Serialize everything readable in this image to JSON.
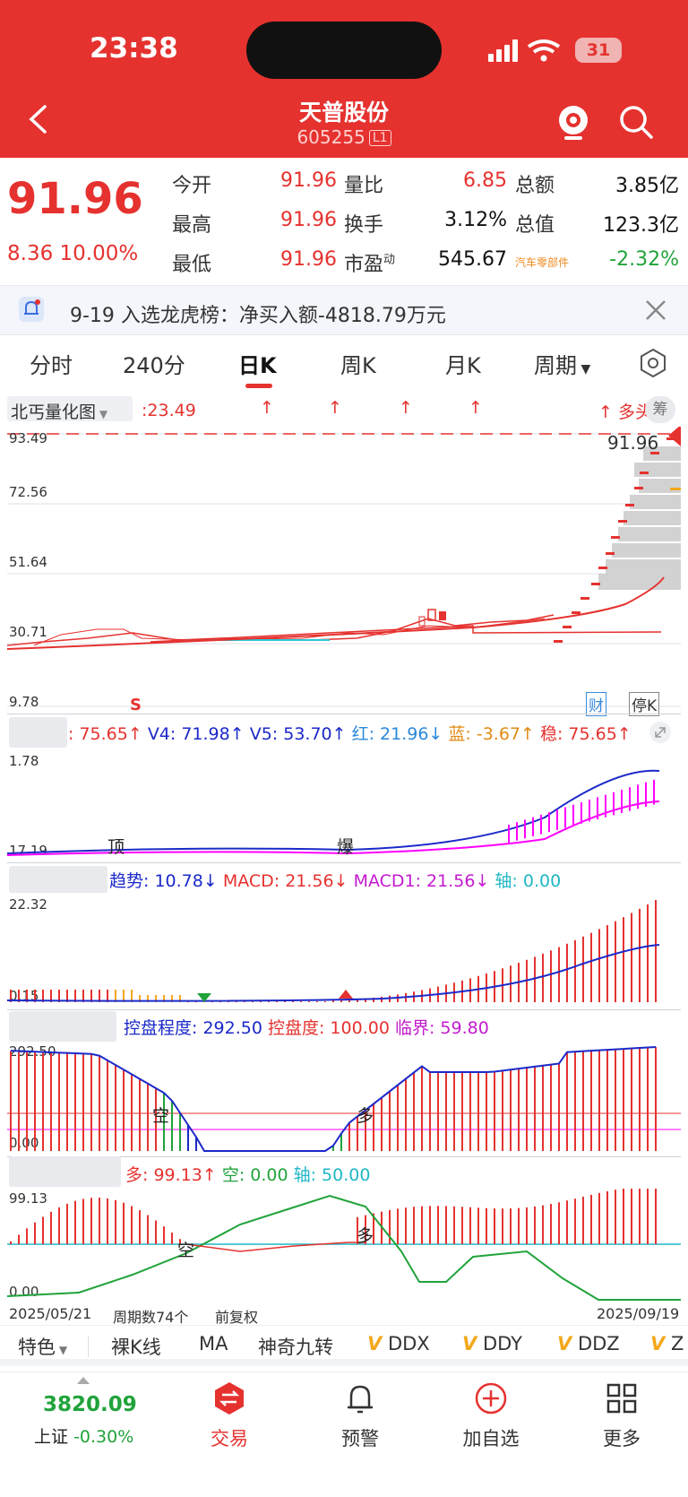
{
  "status": {
    "time": "23:38",
    "battery": "31"
  },
  "header": {
    "name": "天普股份",
    "code": "605255",
    "level": "L1"
  },
  "quote": {
    "price": "91.96",
    "change": "8.36",
    "change_pct": "10.00%",
    "rows": [
      {
        "l1": "今开",
        "v1": "91.96",
        "l2": "量比",
        "v2": "6.85",
        "l3": "总额",
        "v3": "3.85亿"
      },
      {
        "l1": "最高",
        "v1": "91.96",
        "l2": "换手",
        "v2": "3.12%",
        "l3": "总值",
        "v3": "123.3亿"
      },
      {
        "l1": "最低",
        "v1": "91.96",
        "l2": "市盈",
        "l2sup": "动",
        "v2": "545.67",
        "l3": "汽车零部件",
        "v3": "-2.32%"
      }
    ]
  },
  "notice": {
    "text": "9-19 入选龙虎榜：净买入额-4818.79万元"
  },
  "tabs": [
    "分时",
    "240分",
    "日K",
    "周K",
    "月K",
    "周期"
  ],
  "kline": {
    "indicator_name": "北丐量化图",
    "top_value": ":23.49",
    "tag_duo": "↑ 多头",
    "tag_chou": "筹",
    "last_price": "91.96",
    "axis": [
      "93.49",
      "72.56",
      "51.64",
      "30.71",
      "9.78"
    ],
    "marker_s": "S",
    "tag_cai": "财",
    "tag_ting": "停K"
  },
  "panel1": {
    "line": [
      ": 75.65↑",
      "V4: 71.98↑",
      "V5: 53.70↑",
      "红: 21.96↓",
      "蓝: -3.67↑",
      "稳: 75.65↑"
    ],
    "axis_top": "1.78",
    "axis_bottom": "17.19",
    "label_ding": "顶",
    "label_bao": "爆"
  },
  "panel2": {
    "line": [
      "趋势: 10.78↓",
      "MACD: 21.56↓",
      "MACD1: 21.56↓",
      "轴: 0.00"
    ],
    "axis_top": "22.32",
    "axis_bottom": "0.15"
  },
  "panel3": {
    "line": [
      "控盘程度: 292.50",
      "控盘度: 100.00",
      "临界: 59.80"
    ],
    "axis_top": "292.50",
    "axis_bottom": "0.00",
    "label_kong": "空",
    "label_duo": "多"
  },
  "panel4": {
    "line": [
      "多: 99.13↑",
      "空: 0.00",
      "轴: 50.00"
    ],
    "axis_top": "99.13",
    "axis_bottom": "0.00",
    "label_kong": "空",
    "label_duo": "多"
  },
  "footer_info": {
    "start": "2025/05/21",
    "period": "周期数74个",
    "adjust": "前复权",
    "end": "2025/09/19"
  },
  "features": [
    "特色",
    "裸K线",
    "MA",
    "神奇九转",
    "DDX",
    "DDY",
    "DDZ",
    "Z"
  ],
  "bottom": {
    "index_value": "3820.09",
    "index_name": "上证",
    "index_change": "-0.30%",
    "nav": [
      "交易",
      "预警",
      "加自选",
      "更多"
    ]
  },
  "colors": {
    "brand": "#e5322f",
    "up": "#e5322f",
    "down": "#21a33b"
  }
}
